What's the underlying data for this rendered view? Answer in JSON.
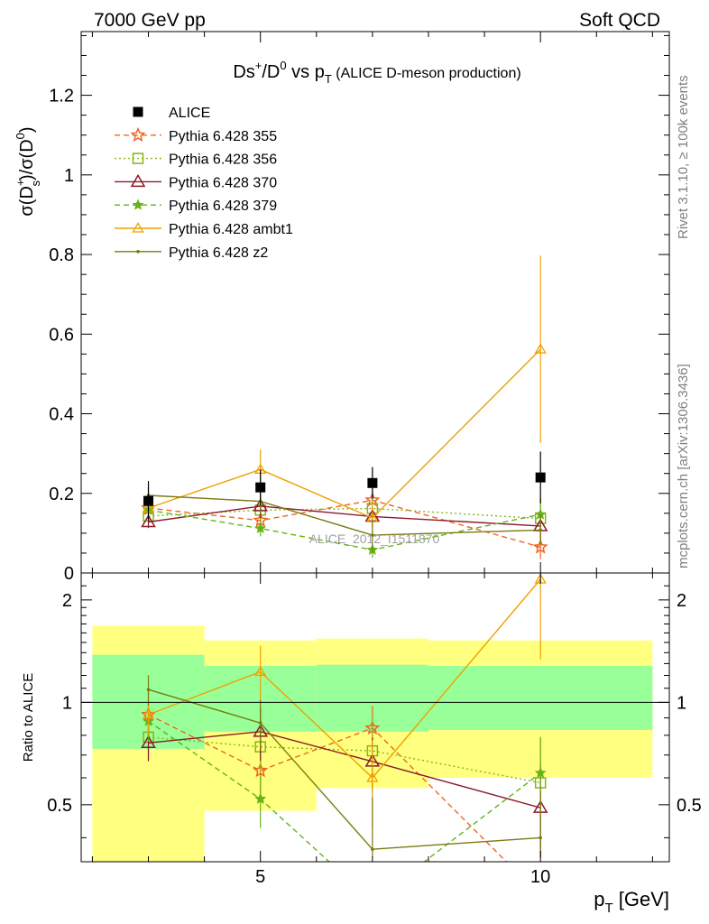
{
  "header": {
    "left": "7000 GeV pp",
    "right": "Soft QCD",
    "side_top": "Rivet 3.1.10, ≥ 100k events",
    "side_bottom": "mcplots.cern.ch [arXiv:1306.3436]"
  },
  "chart_data": {
    "type": "line",
    "title": {
      "main": "Ds",
      "sup1": "+",
      "mid": "/D",
      "sup2": "0",
      "mid2": " vs p",
      "sub": "T",
      "paren": " (ALICE D-meson production)"
    },
    "watermark": "ALICE_2012_I1511870",
    "xlabel": {
      "main": "p",
      "sub": "T",
      "rest": " [GeV]"
    },
    "ylabel_top": {
      "p1": "σ(D",
      "sup1": "+",
      "sub1": "s",
      "p2": ")/σ(D",
      "sup2": "0",
      "p3": ")"
    },
    "ylabel_bottom": "Ratio to ALICE",
    "xlim": [
      1.8,
      12.3
    ],
    "ylim_top": [
      0,
      1.36
    ],
    "ylim_bottom": [
      0.34,
      2.4
    ],
    "x_ticks": [
      "5",
      "10"
    ],
    "y_ticks_top": [
      "0",
      "0.2",
      "0.4",
      "0.6",
      "0.8",
      "1",
      "1.2"
    ],
    "y_ticks_bottom": [
      "0.5",
      "1",
      "2"
    ],
    "bins": [
      [
        2,
        4
      ],
      [
        4,
        6
      ],
      [
        6,
        8
      ],
      [
        8,
        12
      ]
    ],
    "legend_position": "top-left",
    "data": {
      "name": "ALICE",
      "x": [
        3,
        5,
        7,
        10
      ],
      "y": [
        0.181,
        0.215,
        0.226,
        0.24
      ],
      "err": [
        0.05,
        0.045,
        0.04,
        0.065
      ],
      "band_inner": [
        [
          0.73,
          1.38
        ],
        [
          0.82,
          1.28
        ],
        [
          0.82,
          1.29
        ],
        [
          0.83,
          1.28
        ]
      ],
      "band_outer": [
        [
          0.34,
          1.68
        ],
        [
          0.48,
          1.52
        ],
        [
          0.56,
          1.54
        ],
        [
          0.6,
          1.52
        ]
      ]
    },
    "series": [
      {
        "name": "Pythia 6.428 355",
        "color": "#f26522",
        "dash": "6,4",
        "marker": "star-open",
        "x": [
          3,
          5,
          7,
          10
        ],
        "y": [
          0.163,
          0.132,
          0.183,
          0.065
        ],
        "err": [
          0.03,
          0.025,
          0.03,
          0.03
        ],
        "ratio": [
          0.92,
          0.63,
          0.84,
          0.27
        ]
      },
      {
        "name": "Pythia 6.428 356",
        "color": "#8ab415",
        "dash": "2,3",
        "marker": "square-open",
        "x": [
          3,
          5,
          7,
          10
        ],
        "y": [
          0.143,
          0.158,
          0.162,
          0.137
        ],
        "err": [
          0.02,
          0.025,
          0.04,
          0.05
        ],
        "ratio": [
          0.79,
          0.74,
          0.72,
          0.58
        ]
      },
      {
        "name": "Pythia 6.428 370",
        "color": "#8b1a2a",
        "dash": "",
        "marker": "triangle-open",
        "x": [
          3,
          5,
          7,
          10
        ],
        "y": [
          0.128,
          0.168,
          0.142,
          0.118
        ],
        "err": [
          0.015,
          0.03,
          0.025,
          0.04
        ],
        "ratio": [
          0.76,
          0.82,
          0.67,
          0.49
        ]
      },
      {
        "name": "Pythia 6.428 379",
        "color": "#66b318",
        "dash": "6,4",
        "marker": "star-filled",
        "x": [
          3,
          5,
          7,
          10
        ],
        "y": [
          0.158,
          0.112,
          0.058,
          0.147
        ],
        "err": [
          0.02,
          0.02,
          0.02,
          0.04
        ],
        "ratio": [
          0.88,
          0.52,
          0.26,
          0.62
        ]
      },
      {
        "name": "Pythia 6.428 ambt1",
        "color": "#f0a000",
        "dash": "",
        "marker": "triangle-open-small",
        "x": [
          3,
          5,
          7,
          10
        ],
        "y": [
          0.163,
          0.26,
          0.138,
          0.562
        ],
        "err": [
          0.02,
          0.05,
          0.04,
          0.235
        ],
        "ratio": [
          0.92,
          1.23,
          0.6,
          2.3
        ]
      },
      {
        "name": "Pythia 6.428 z2",
        "color": "#7a7a10",
        "dash": "",
        "marker": "dot",
        "x": [
          3,
          5,
          7,
          10
        ],
        "y": [
          0.195,
          0.18,
          0.095,
          0.108
        ],
        "err": [
          0.02,
          0.03,
          0.04,
          0.04
        ],
        "ratio": [
          1.09,
          0.87,
          0.37,
          0.4
        ]
      }
    ]
  }
}
